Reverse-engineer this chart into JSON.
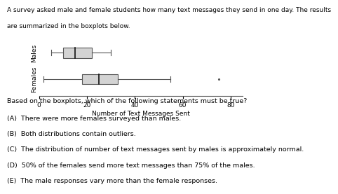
{
  "title_line1": "A survey asked male and female students how many text messages they send in one day. The results",
  "title_line2": "are summarized in the boxplots below.",
  "males": {
    "whisker_low": 5,
    "q1": 10,
    "median": 15,
    "q3": 22,
    "whisker_high": 30,
    "outliers": []
  },
  "females": {
    "whisker_low": 2,
    "q1": 18,
    "median": 25,
    "q3": 33,
    "whisker_high": 55,
    "outliers": [
      75
    ]
  },
  "xlabel": "Number of Text Messages Sent",
  "xlim": [
    0,
    85
  ],
  "xticks": [
    0,
    20,
    40,
    60,
    80
  ],
  "box_color": "#d3d3d3",
  "box_edge_color": "#555555",
  "median_color": "#111111",
  "whisker_color": "#555555",
  "question_text": "Based on the boxplots, which of the following statements must be true?",
  "choices": [
    "(A)  There were more females surveyed than males.",
    "(B)  Both distributions contain outliers.",
    "(C)  The distribution of number of text messages sent by males is approximately normal.",
    "(D)  50% of the females send more text messages than 75% of the males.",
    "(E)  The male responses vary more than the female responses."
  ],
  "title_fontsize": 6.5,
  "label_fontsize": 6.5,
  "choice_fontsize": 6.8,
  "ylabel_males": "Males",
  "ylabel_females": "Females"
}
